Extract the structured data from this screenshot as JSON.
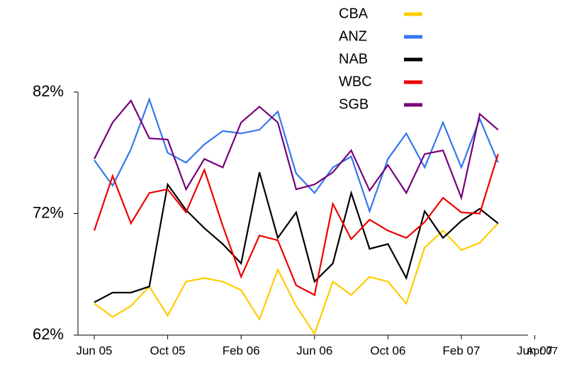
{
  "chart_data": {
    "type": "line",
    "categories": [
      "Jun 05",
      null,
      null,
      null,
      "Oct 05",
      null,
      null,
      null,
      "Feb 06",
      null,
      null,
      null,
      "Jun 06",
      null,
      null,
      null,
      "Oct 06",
      null,
      null,
      null,
      "Feb 07",
      null,
      null,
      null,
      "Jun 07"
    ],
    "x_axis_end_label": "Apr 07",
    "series": [
      {
        "name": "CBA",
        "color": "#ffcc00",
        "values": [
          64.6,
          63.5,
          64.4,
          66.0,
          63.6,
          66.4,
          66.7,
          66.4,
          65.7,
          63.3,
          67.4,
          64.4,
          62.1,
          66.4,
          65.3,
          66.8,
          66.4,
          64.6,
          69.2,
          70.6,
          69.0,
          69.6,
          71.2,
          null,
          null
        ]
      },
      {
        "name": "ANZ",
        "color": "#3377ee",
        "values": [
          76.4,
          74.3,
          77.3,
          81.4,
          77.0,
          76.2,
          77.7,
          78.8,
          78.6,
          78.9,
          80.4,
          75.3,
          73.7,
          75.8,
          76.7,
          72.2,
          76.5,
          78.6,
          75.8,
          79.5,
          75.8,
          79.8,
          76.2,
          null,
          null
        ]
      },
      {
        "name": "NAB",
        "color": "#000000",
        "values": [
          64.7,
          65.5,
          65.5,
          66.0,
          74.4,
          72.3,
          70.8,
          69.5,
          67.9,
          75.4,
          70.0,
          72.1,
          66.4,
          67.9,
          73.7,
          69.1,
          69.5,
          66.7,
          72.2,
          70.0,
          71.4,
          72.4,
          71.2,
          null,
          null
        ]
      },
      {
        "name": "WBC",
        "color": "#ee0000",
        "values": [
          70.6,
          75.1,
          71.2,
          73.7,
          74.0,
          72.1,
          75.6,
          71.0,
          66.8,
          70.2,
          69.8,
          66.1,
          65.3,
          72.8,
          69.9,
          71.5,
          70.6,
          70.0,
          71.3,
          73.3,
          72.1,
          72.0,
          76.9,
          null,
          null
        ]
      },
      {
        "name": "SGB",
        "color": "#770077",
        "values": [
          76.5,
          79.5,
          81.3,
          78.2,
          78.1,
          74.0,
          76.5,
          75.8,
          79.5,
          80.8,
          79.5,
          74.0,
          74.4,
          75.4,
          77.2,
          73.9,
          76.0,
          73.7,
          76.9,
          77.2,
          73.3,
          80.2,
          78.9,
          null,
          null
        ]
      }
    ],
    "ylim": [
      62,
      82
    ],
    "yticks": [
      {
        "value": 62,
        "label": "62%"
      },
      {
        "value": 72,
        "label": "72%"
      },
      {
        "value": 82,
        "label": "82%"
      }
    ],
    "grid": false,
    "legend": "top-right"
  }
}
